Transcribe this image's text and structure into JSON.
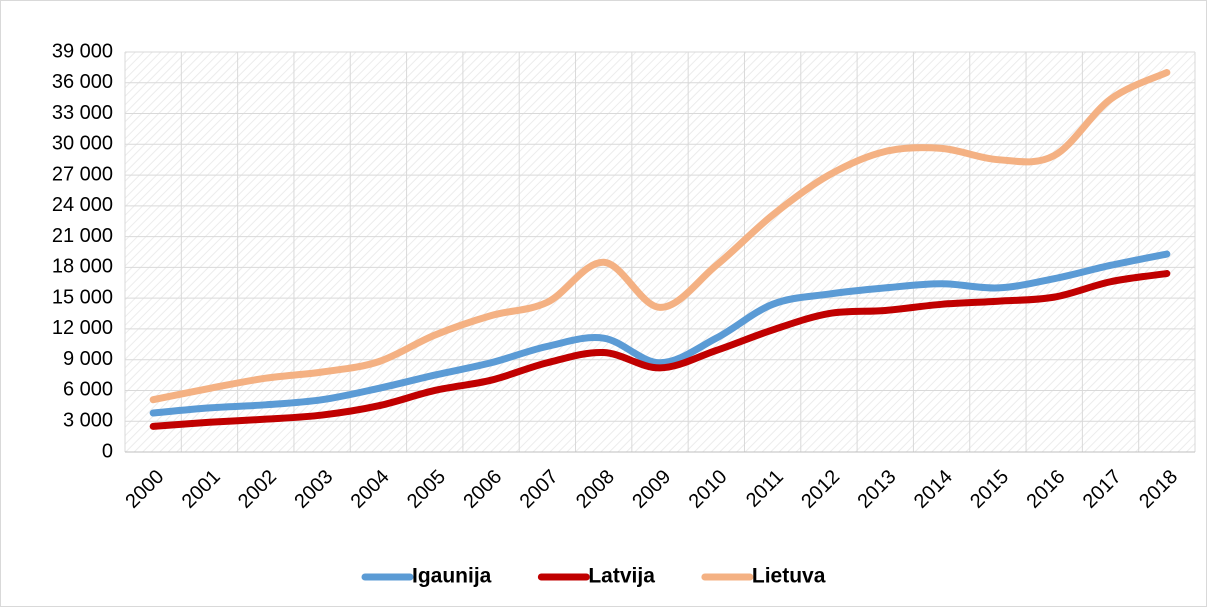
{
  "chart_data": {
    "type": "line",
    "categories": [
      "2000",
      "2001",
      "2002",
      "2003",
      "2004",
      "2005",
      "2006",
      "2007",
      "2008",
      "2009",
      "2010",
      "2011",
      "2012",
      "2013",
      "2014",
      "2015",
      "2016",
      "2017",
      "2018"
    ],
    "series": [
      {
        "name": "Igaunija",
        "color": "#5b9bd5",
        "values": [
          3800,
          4300,
          4600,
          5100,
          6200,
          7500,
          8700,
          10300,
          11100,
          8700,
          11100,
          14400,
          15400,
          16000,
          16400,
          16000,
          16900,
          18200,
          19300
        ]
      },
      {
        "name": "Latvija",
        "color": "#c00000",
        "values": [
          2500,
          2900,
          3200,
          3600,
          4500,
          6000,
          7000,
          8700,
          9700,
          8200,
          9900,
          11900,
          13500,
          13800,
          14400,
          14700,
          15100,
          16600,
          17400
        ]
      },
      {
        "name": "Lietuva",
        "color": "#f4b183",
        "values": [
          5100,
          6200,
          7200,
          7800,
          8800,
          11400,
          13300,
          14600,
          18500,
          14100,
          18200,
          23100,
          27000,
          29300,
          29600,
          28500,
          28900,
          34400,
          37000
        ]
      }
    ],
    "ylim": [
      0,
      39000
    ],
    "yticks": [
      0,
      {
        "value": 3000,
        "label": "3 000"
      },
      {
        "value": 6000,
        "label": "6 000"
      },
      {
        "value": 9000,
        "label": "9 000"
      },
      {
        "value": 12000,
        "label": "12 000"
      },
      {
        "value": 15000,
        "label": "15 000"
      },
      {
        "value": 18000,
        "label": "18 000"
      },
      {
        "value": 21000,
        "label": "21 000"
      },
      {
        "value": 24000,
        "label": "24 000"
      },
      {
        "value": 27000,
        "label": "27 000"
      },
      {
        "value": 30000,
        "label": "30 000"
      },
      {
        "value": 33000,
        "label": "33 000"
      },
      {
        "value": 36000,
        "label": "36 000"
      },
      {
        "value": 39000,
        "label": "39 000"
      }
    ],
    "grid": true,
    "legend": "bottom"
  }
}
